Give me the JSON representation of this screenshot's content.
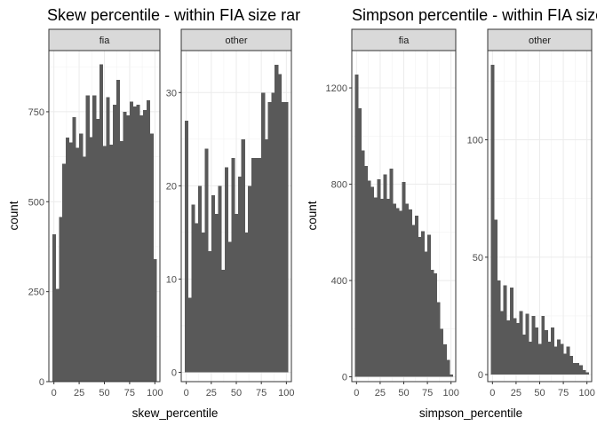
{
  "chart_data": [
    {
      "type": "bar",
      "title": "Skew percentile - within FIA size rar",
      "xlabel": "skew_percentile",
      "ylabel": "count",
      "bar_color": "#595959",
      "grid": true,
      "facets": [
        {
          "label": "fia",
          "xlim": [
            -5,
            105
          ],
          "ylim": [
            0,
            920
          ],
          "x_ticks": [
            0,
            25,
            50,
            75,
            100
          ],
          "y_ticks": [
            0,
            250,
            500,
            750
          ],
          "bins": [
            {
              "x": 0,
              "value": 410
            },
            {
              "x": 3.33,
              "value": 258
            },
            {
              "x": 6.67,
              "value": 458
            },
            {
              "x": 10,
              "value": 605
            },
            {
              "x": 13.33,
              "value": 678
            },
            {
              "x": 16.67,
              "value": 665
            },
            {
              "x": 20,
              "value": 735
            },
            {
              "x": 23.33,
              "value": 650
            },
            {
              "x": 26.67,
              "value": 690
            },
            {
              "x": 30,
              "value": 625
            },
            {
              "x": 33.33,
              "value": 795
            },
            {
              "x": 36.67,
              "value": 680
            },
            {
              "x": 40,
              "value": 795
            },
            {
              "x": 43.33,
              "value": 730
            },
            {
              "x": 46.67,
              "value": 882
            },
            {
              "x": 50,
              "value": 655
            },
            {
              "x": 53.33,
              "value": 790
            },
            {
              "x": 56.67,
              "value": 658
            },
            {
              "x": 60,
              "value": 770
            },
            {
              "x": 63.33,
              "value": 838
            },
            {
              "x": 66.67,
              "value": 668
            },
            {
              "x": 70,
              "value": 750
            },
            {
              "x": 73.33,
              "value": 740
            },
            {
              "x": 76.67,
              "value": 778
            },
            {
              "x": 80,
              "value": 765
            },
            {
              "x": 83.33,
              "value": 770
            },
            {
              "x": 86.67,
              "value": 740
            },
            {
              "x": 90,
              "value": 755
            },
            {
              "x": 93.33,
              "value": 782
            },
            {
              "x": 96.67,
              "value": 690
            },
            {
              "x": 100,
              "value": 340
            }
          ]
        },
        {
          "label": "other",
          "xlim": [
            -5,
            105
          ],
          "ylim": [
            -1,
            34.5
          ],
          "x_ticks": [
            0,
            25,
            50,
            75,
            100
          ],
          "y_ticks": [
            0,
            10,
            20,
            30
          ],
          "bins": [
            {
              "x": 0,
              "value": 27
            },
            {
              "x": 3.33,
              "value": 8
            },
            {
              "x": 6.67,
              "value": 18
            },
            {
              "x": 10,
              "value": 16
            },
            {
              "x": 13.33,
              "value": 20
            },
            {
              "x": 16.67,
              "value": 15
            },
            {
              "x": 20,
              "value": 24
            },
            {
              "x": 23.33,
              "value": 13
            },
            {
              "x": 26.67,
              "value": 19
            },
            {
              "x": 30,
              "value": 17
            },
            {
              "x": 33.33,
              "value": 20
            },
            {
              "x": 36.67,
              "value": 11
            },
            {
              "x": 40,
              "value": 22
            },
            {
              "x": 43.33,
              "value": 14
            },
            {
              "x": 46.67,
              "value": 23
            },
            {
              "x": 50,
              "value": 17
            },
            {
              "x": 53.33,
              "value": 21
            },
            {
              "x": 56.67,
              "value": 25
            },
            {
              "x": 60,
              "value": 15
            },
            {
              "x": 63.33,
              "value": 20
            },
            {
              "x": 66.67,
              "value": 23
            },
            {
              "x": 70,
              "value": 23
            },
            {
              "x": 73.33,
              "value": 23
            },
            {
              "x": 76.67,
              "value": 30
            },
            {
              "x": 80,
              "value": 25
            },
            {
              "x": 83.33,
              "value": 29
            },
            {
              "x": 86.67,
              "value": 30
            },
            {
              "x": 90,
              "value": 33
            },
            {
              "x": 93.33,
              "value": 32
            },
            {
              "x": 96.67,
              "value": 29
            },
            {
              "x": 100,
              "value": 29
            }
          ]
        }
      ]
    },
    {
      "type": "bar",
      "title": "Simpson percentile - within FIA size",
      "xlabel": "simpson_percentile",
      "ylabel": "count",
      "bar_color": "#595959",
      "grid": true,
      "facets": [
        {
          "label": "fia",
          "xlim": [
            -5,
            105
          ],
          "ylim": [
            -20,
            1355
          ],
          "x_ticks": [
            0,
            25,
            50,
            75,
            100
          ],
          "y_ticks": [
            0,
            400,
            800,
            1200
          ],
          "bins": [
            {
              "x": 0,
              "value": 1255
            },
            {
              "x": 3.33,
              "value": 1115
            },
            {
              "x": 6.67,
              "value": 940
            },
            {
              "x": 10,
              "value": 875
            },
            {
              "x": 13.33,
              "value": 815
            },
            {
              "x": 16.67,
              "value": 790
            },
            {
              "x": 20,
              "value": 745
            },
            {
              "x": 23.33,
              "value": 820
            },
            {
              "x": 26.67,
              "value": 740
            },
            {
              "x": 30,
              "value": 840
            },
            {
              "x": 33.33,
              "value": 740
            },
            {
              "x": 36.67,
              "value": 865
            },
            {
              "x": 40,
              "value": 720
            },
            {
              "x": 43.33,
              "value": 700
            },
            {
              "x": 46.67,
              "value": 690
            },
            {
              "x": 50,
              "value": 810
            },
            {
              "x": 53.33,
              "value": 720
            },
            {
              "x": 56.67,
              "value": 695
            },
            {
              "x": 60,
              "value": 630
            },
            {
              "x": 63.33,
              "value": 670
            },
            {
              "x": 66.67,
              "value": 580
            },
            {
              "x": 70,
              "value": 605
            },
            {
              "x": 73.33,
              "value": 520
            },
            {
              "x": 76.67,
              "value": 590
            },
            {
              "x": 80,
              "value": 445
            },
            {
              "x": 83.33,
              "value": 430
            },
            {
              "x": 86.67,
              "value": 310
            },
            {
              "x": 90,
              "value": 200
            },
            {
              "x": 93.33,
              "value": 135
            },
            {
              "x": 96.67,
              "value": 70
            },
            {
              "x": 100,
              "value": 10
            }
          ]
        },
        {
          "label": "other",
          "xlim": [
            -5,
            105
          ],
          "ylim": [
            -3,
            138
          ],
          "x_ticks": [
            0,
            25,
            50,
            75,
            100
          ],
          "y_ticks": [
            0,
            50,
            100
          ],
          "bins": [
            {
              "x": 0,
              "value": 132
            },
            {
              "x": 3.33,
              "value": 66
            },
            {
              "x": 6.67,
              "value": 40
            },
            {
              "x": 10,
              "value": 27
            },
            {
              "x": 13.33,
              "value": 38
            },
            {
              "x": 16.67,
              "value": 23
            },
            {
              "x": 20,
              "value": 37
            },
            {
              "x": 23.33,
              "value": 24
            },
            {
              "x": 26.67,
              "value": 22
            },
            {
              "x": 30,
              "value": 27
            },
            {
              "x": 33.33,
              "value": 17
            },
            {
              "x": 36.67,
              "value": 26
            },
            {
              "x": 40,
              "value": 14
            },
            {
              "x": 43.33,
              "value": 25
            },
            {
              "x": 46.67,
              "value": 20
            },
            {
              "x": 50,
              "value": 13
            },
            {
              "x": 53.33,
              "value": 25
            },
            {
              "x": 56.67,
              "value": 19
            },
            {
              "x": 60,
              "value": 14
            },
            {
              "x": 63.33,
              "value": 20
            },
            {
              "x": 66.67,
              "value": 12
            },
            {
              "x": 70,
              "value": 15
            },
            {
              "x": 73.33,
              "value": 13
            },
            {
              "x": 76.67,
              "value": 9
            },
            {
              "x": 80,
              "value": 12
            },
            {
              "x": 83.33,
              "value": 8
            },
            {
              "x": 86.67,
              "value": 5
            },
            {
              "x": 90,
              "value": 5
            },
            {
              "x": 93.33,
              "value": 4
            },
            {
              "x": 96.67,
              "value": 2
            },
            {
              "x": 100,
              "value": 1
            }
          ]
        }
      ]
    }
  ]
}
